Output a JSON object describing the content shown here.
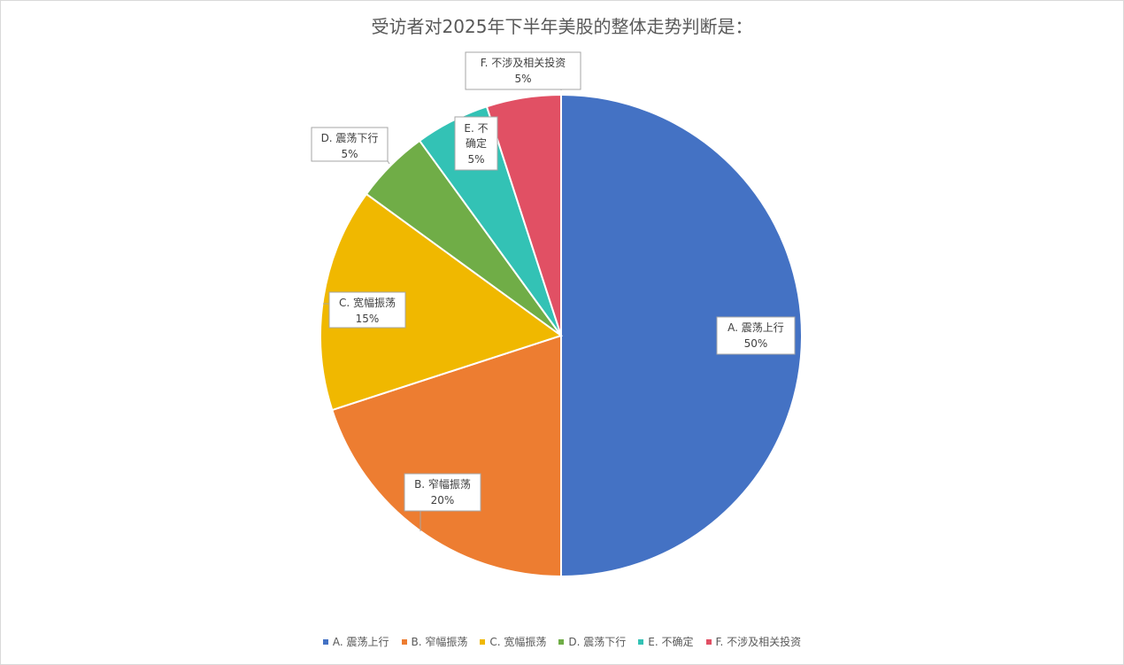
{
  "chart_data": {
    "type": "pie",
    "title": "受访者对2025年下半年美股的整体走势判断是：",
    "categories": [
      "A. 震荡上行",
      "B. 窄幅振荡",
      "C. 宽幅振荡",
      "D. 震荡下行",
      "E. 不确定",
      "F. 不涉及相关投资"
    ],
    "values": [
      50,
      20,
      15,
      5,
      5,
      5
    ],
    "value_labels": [
      "50%",
      "20%",
      "15%",
      "5%",
      "5%",
      "5%"
    ],
    "colors": [
      "#4472c4",
      "#ed7d31",
      "#f0b800",
      "#70ad47",
      "#33c2b5",
      "#e15064"
    ],
    "start_angle_deg": 0,
    "direction": "clockwise",
    "legend_position": "bottom",
    "data_labels": "callouts with category name and percentage"
  }
}
